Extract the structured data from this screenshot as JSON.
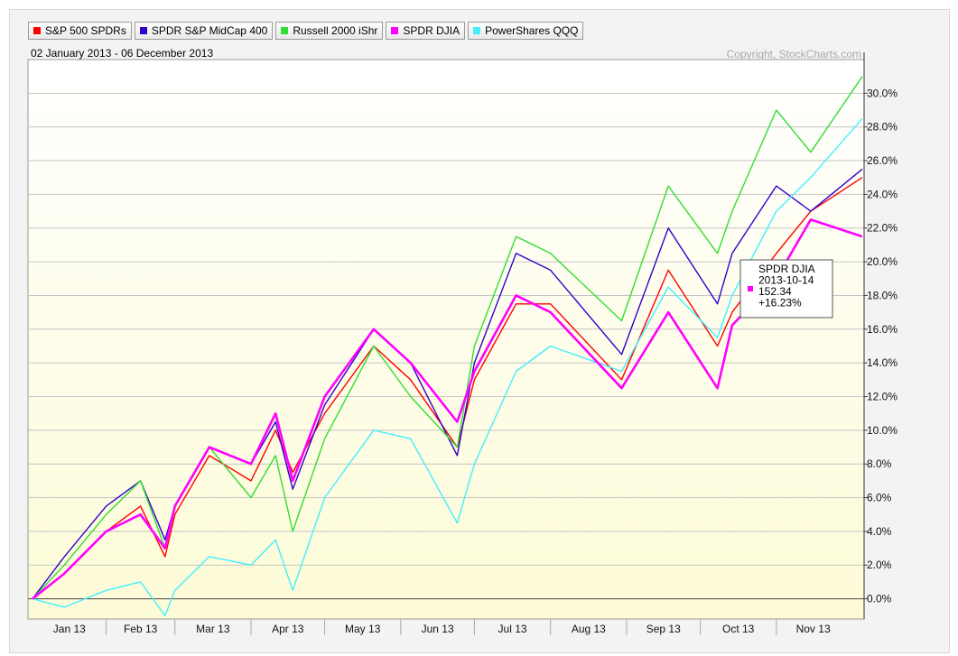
{
  "chart_data": {
    "type": "line",
    "date_range_label": "02 January 2013 - 06 December 2013",
    "copyright": "Copyright, StockCharts.com",
    "ylim": [
      -1.2,
      32.0
    ],
    "y_ticks": [
      0,
      2,
      4,
      6,
      8,
      10,
      12,
      14,
      16,
      18,
      20,
      22,
      24,
      26,
      28,
      30
    ],
    "y_tick_labels": [
      "0.0%",
      "2.0%",
      "4.0%",
      "6.0%",
      "8.0%",
      "10.0%",
      "12.0%",
      "14.0%",
      "16.0%",
      "18.0%",
      "20.0%",
      "22.0%",
      "24.0%",
      "26.0%",
      "28.0%",
      "30.0%"
    ],
    "grid": true,
    "y_axis_side": "right",
    "months": [
      "Jan 13",
      "Feb 13",
      "Mar 13",
      "Apr 13",
      "May 13",
      "Jun 13",
      "Jul 13",
      "Aug 13",
      "Sep 13",
      "Oct 13",
      "Nov 13"
    ],
    "x": [
      "2013-01-02",
      "2013-01-15",
      "2013-02-01",
      "2013-02-15",
      "2013-02-25",
      "2013-03-01",
      "2013-03-15",
      "2013-04-01",
      "2013-04-11",
      "2013-04-18",
      "2013-05-01",
      "2013-05-21",
      "2013-06-05",
      "2013-06-24",
      "2013-07-01",
      "2013-07-18",
      "2013-08-01",
      "2013-08-30",
      "2013-09-18",
      "2013-10-08",
      "2013-10-14",
      "2013-11-01",
      "2013-11-15",
      "2013-12-06"
    ],
    "series": [
      {
        "name": "S&P 500 SPDRs",
        "color": "#ff0000",
        "values": [
          0.0,
          1.5,
          4.0,
          5.5,
          2.5,
          5.0,
          8.5,
          7.0,
          10.0,
          7.5,
          11.0,
          15.0,
          13.0,
          9.0,
          13.0,
          17.5,
          17.5,
          13.0,
          19.5,
          15.0,
          17.0,
          20.5,
          23.0,
          25.0
        ]
      },
      {
        "name": "SPDR S&P MidCap 400",
        "color": "#3300cc",
        "values": [
          0.0,
          2.5,
          5.5,
          7.0,
          3.5,
          5.5,
          9.0,
          8.0,
          10.5,
          6.5,
          11.5,
          16.0,
          14.0,
          8.5,
          14.0,
          20.5,
          19.5,
          14.5,
          22.0,
          17.5,
          20.5,
          24.5,
          23.0,
          25.5
        ]
      },
      {
        "name": "Russell 2000 iShr",
        "color": "#33dd33",
        "values": [
          0.0,
          2.0,
          5.0,
          7.0,
          3.0,
          5.5,
          9.0,
          6.0,
          8.5,
          4.0,
          9.5,
          15.0,
          12.0,
          9.0,
          15.0,
          21.5,
          20.5,
          16.5,
          24.5,
          20.5,
          23.0,
          29.0,
          26.5,
          31.0
        ]
      },
      {
        "name": "SPDR DJIA",
        "color": "#ff00ff",
        "values": [
          0.0,
          1.5,
          4.0,
          5.0,
          3.0,
          5.5,
          9.0,
          8.0,
          11.0,
          7.0,
          12.0,
          16.0,
          14.0,
          10.5,
          13.5,
          18.0,
          17.0,
          12.5,
          17.0,
          12.5,
          16.23,
          19.0,
          22.5,
          21.5
        ]
      },
      {
        "name": "PowerShares QQQ",
        "color": "#44eeff",
        "values": [
          0.0,
          -0.5,
          0.5,
          1.0,
          -1.0,
          0.5,
          2.5,
          2.0,
          3.5,
          0.5,
          6.0,
          10.0,
          9.5,
          4.5,
          8.0,
          13.5,
          15.0,
          13.5,
          18.5,
          15.5,
          18.0,
          23.0,
          25.0,
          28.5
        ]
      }
    ],
    "tooltip": {
      "series": "SPDR DJIA",
      "date": "2013-10-14",
      "price": "152.34",
      "change": "+16.23%",
      "color": "#ff00ff"
    }
  }
}
